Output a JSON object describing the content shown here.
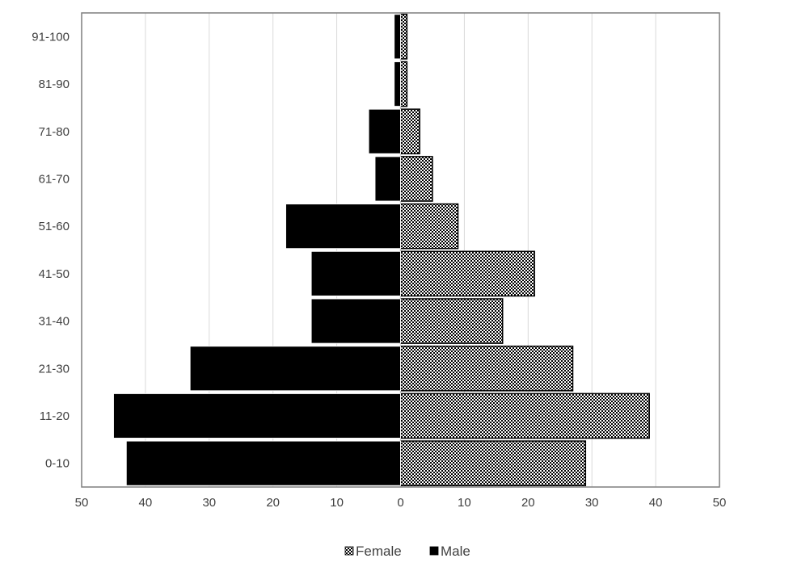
{
  "chart_data": {
    "type": "bar",
    "orientation": "horizontal",
    "layout": "population-pyramid",
    "categories": [
      "0-10",
      "11-20",
      "21-30",
      "31-40",
      "41-50",
      "51-60",
      "61-70",
      "71-80",
      "81-90",
      "91-100"
    ],
    "series": [
      {
        "name": "Female",
        "side": "right",
        "pattern": "checker",
        "values": [
          29,
          39,
          27,
          16,
          21,
          9,
          5,
          3,
          1,
          1
        ]
      },
      {
        "name": "Male",
        "side": "left",
        "color": "#000000",
        "values": [
          43,
          45,
          33,
          14,
          14,
          18,
          4,
          5,
          1,
          1
        ]
      }
    ],
    "xlim": [
      -50,
      50
    ],
    "xticks": [
      -50,
      -40,
      -30,
      -20,
      -10,
      0,
      10,
      20,
      30,
      40,
      50
    ],
    "xtick_labels": [
      "50",
      "40",
      "30",
      "20",
      "10",
      "0",
      "10",
      "20",
      "30",
      "40",
      "50"
    ],
    "grid": "vertical",
    "legend": {
      "position": "bottom",
      "entries": [
        "Female",
        "Male"
      ]
    },
    "title": "",
    "xlabel": "",
    "ylabel": ""
  }
}
